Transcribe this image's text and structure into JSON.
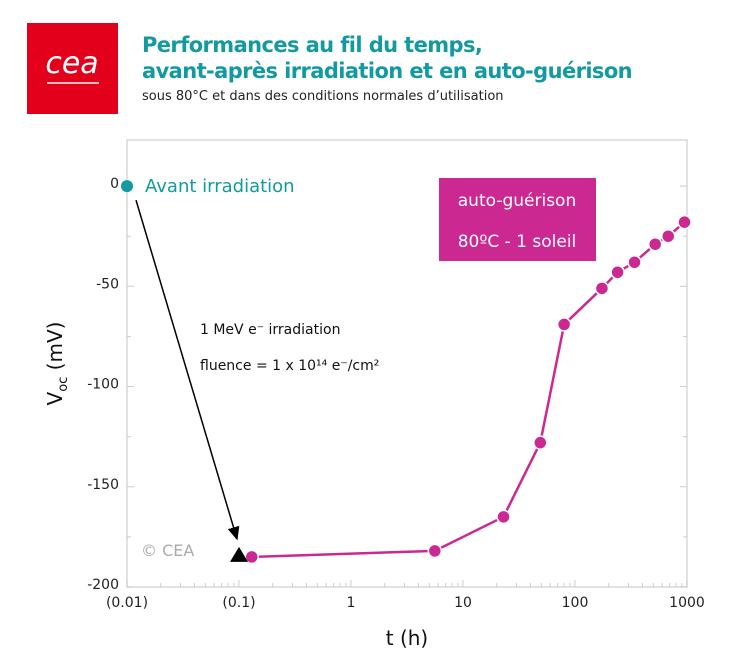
{
  "header": {
    "logo_text": "cea",
    "title_line1": "Performances au fil du temps,",
    "title_line2": "avant-après irradiation et en auto-guérison",
    "subtitle": "sous 80°C et dans des conditions normales d’utilisation"
  },
  "chart_data": {
    "type": "scatter",
    "xlabel": "t (h)",
    "ylabel": {
      "main": "V",
      "sub": "oc",
      "unit": " (mV)"
    },
    "xscale": "log",
    "xlim": [
      0.01,
      1000
    ],
    "ylim": [
      -200,
      23
    ],
    "grid": false,
    "x_ticks": [
      0.01,
      0.1,
      1,
      10,
      100,
      1000
    ],
    "x_tick_labels": [
      "(0.01)",
      "(0.1)",
      "1",
      "10",
      "100",
      "1000"
    ],
    "y_ticks": [
      0,
      -50,
      -100,
      -150,
      -200
    ],
    "y_tick_labels": [
      "0",
      "-50",
      "-100",
      "-150",
      "-200"
    ],
    "series": [
      {
        "name": "Avant irradiation",
        "color": "#129aa0",
        "marker": "circle",
        "points": [
          {
            "x": 0.01,
            "y": 0
          }
        ]
      },
      {
        "marker": "triangle",
        "color": "#000000",
        "points": [
          {
            "x": 0.1,
            "y": -184
          }
        ]
      },
      {
        "name": "auto-guérison",
        "color": "#cc2891",
        "marker": "circle",
        "line": true,
        "points": [
          {
            "x": 0.13,
            "y": -185
          },
          {
            "x": 5.6,
            "y": -182
          },
          {
            "x": 23,
            "y": -165
          },
          {
            "x": 49,
            "y": -128
          },
          {
            "x": 80,
            "y": -69
          },
          {
            "x": 174,
            "y": -51
          },
          {
            "x": 240,
            "y": -43
          },
          {
            "x": 340,
            "y": -38
          },
          {
            "x": 520,
            "y": -29
          },
          {
            "x": 680,
            "y": -25
          },
          {
            "x": 950,
            "y": -18
          }
        ]
      }
    ],
    "annotations": {
      "irradiation_line1": "1 MeV e⁻ irradiation",
      "irradiation_line2": "fluence = 1 x 10¹⁴ e⁻/cm²",
      "box_line1": "auto-guérison",
      "box_line2": "80ºC - 1 soleil",
      "copyright": "© CEA"
    }
  }
}
